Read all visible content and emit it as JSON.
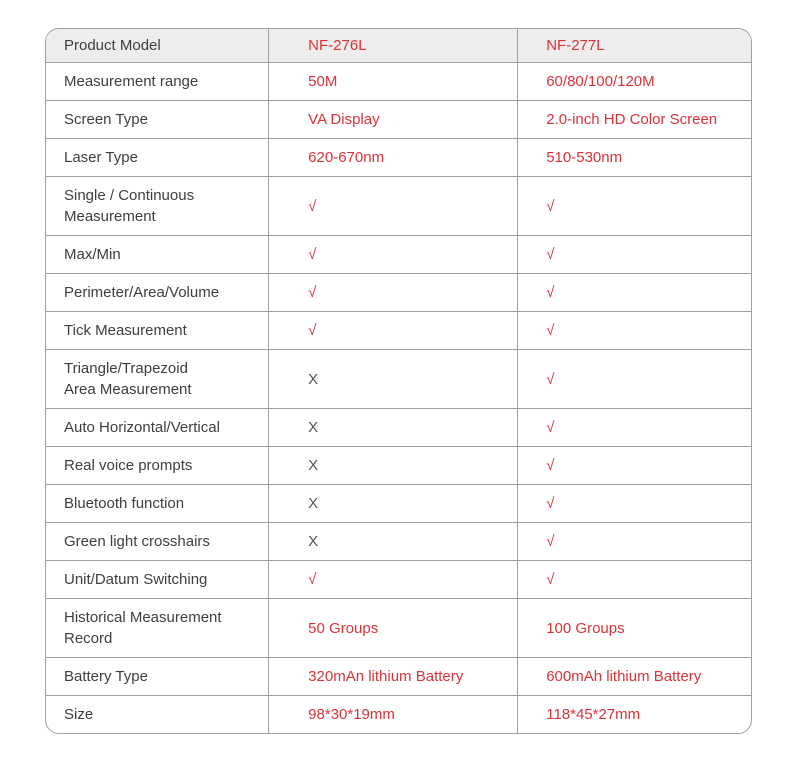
{
  "colors": {
    "accent_red": "#d9333a",
    "header_bg": "#ededed",
    "border_gray": "#a0a0a0",
    "label_text": "#3e3e3e",
    "cross_gray": "#555555"
  },
  "table": {
    "header": {
      "feature": "Product Model",
      "model1": "NF-276L",
      "model2": "NF-277L"
    },
    "rows": [
      {
        "label": "Measurement range",
        "v1": {
          "text": "50M",
          "cls": "red"
        },
        "v2": {
          "text": "60/80/100/120M",
          "cls": "red"
        }
      },
      {
        "label": "Screen Type",
        "v1": {
          "text": "VA Display",
          "cls": "red"
        },
        "v2": {
          "text": "2.0-inch HD Color Screen",
          "cls": "red"
        }
      },
      {
        "label": "Laser Type",
        "v1": {
          "text": "620-670nm",
          "cls": "red"
        },
        "v2": {
          "text": "510-530nm",
          "cls": "red"
        }
      },
      {
        "label": "Single / Continuous\nMeasurement",
        "v1": {
          "text": "√",
          "cls": "red"
        },
        "v2": {
          "text": "√",
          "cls": "red"
        }
      },
      {
        "label": "Max/Min",
        "v1": {
          "text": "√",
          "cls": "red"
        },
        "v2": {
          "text": "√",
          "cls": "red"
        }
      },
      {
        "label": "Perimeter/Area/Volume",
        "v1": {
          "text": "√",
          "cls": "red"
        },
        "v2": {
          "text": "√",
          "cls": "red"
        }
      },
      {
        "label": "Tick Measurement",
        "v1": {
          "text": "√",
          "cls": "red"
        },
        "v2": {
          "text": "√",
          "cls": "red"
        }
      },
      {
        "label": "Triangle/Trapezoid\nArea Measurement",
        "v1": {
          "text": "X",
          "cls": "dark"
        },
        "v2": {
          "text": "√",
          "cls": "red"
        }
      },
      {
        "label": "Auto Horizontal/Vertical",
        "v1": {
          "text": "X",
          "cls": "dark"
        },
        "v2": {
          "text": "√",
          "cls": "red"
        }
      },
      {
        "label": "Real voice prompts",
        "v1": {
          "text": "X",
          "cls": "dark"
        },
        "v2": {
          "text": "√",
          "cls": "red"
        }
      },
      {
        "label": "Bluetooth function",
        "v1": {
          "text": "X",
          "cls": "dark"
        },
        "v2": {
          "text": "√",
          "cls": "red"
        }
      },
      {
        "label": "Green light crosshairs",
        "v1": {
          "text": "X",
          "cls": "dark"
        },
        "v2": {
          "text": "√",
          "cls": "red"
        }
      },
      {
        "label": "Unit/Datum Switching",
        "v1": {
          "text": "√",
          "cls": "red"
        },
        "v2": {
          "text": "√",
          "cls": "red"
        }
      },
      {
        "label": "Historical Measurement\nRecord",
        "v1": {
          "text": "50 Groups",
          "cls": "red"
        },
        "v2": {
          "text": "100 Groups",
          "cls": "red"
        }
      },
      {
        "label": "Battery Type",
        "v1": {
          "text": "320mAn lithium Battery",
          "cls": "red"
        },
        "v2": {
          "text": "600mAh lithium Battery",
          "cls": "red"
        }
      },
      {
        "label": "Size",
        "v1": {
          "text": "98*30*19mm",
          "cls": "red"
        },
        "v2": {
          "text": "118*45*27mm",
          "cls": "red"
        }
      }
    ]
  }
}
